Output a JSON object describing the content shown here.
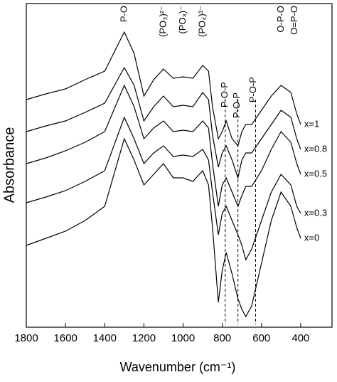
{
  "chart_data": {
    "type": "line",
    "xlabel": "Wavenumber (cm⁻¹)",
    "ylabel": "Absorbance",
    "xlim": [
      1800,
      240
    ],
    "xticks": [
      1800,
      1600,
      1400,
      1200,
      1000,
      800,
      600,
      400
    ],
    "ylim": [
      0,
      91
    ],
    "color": "#000000",
    "x": [
      1800,
      1700,
      1600,
      1500,
      1400,
      1300,
      1250,
      1200,
      1150,
      1100,
      1050,
      1000,
      950,
      900,
      870,
      850,
      820,
      800,
      780,
      750,
      720,
      700,
      680,
      650,
      600,
      550,
      500,
      450,
      420,
      400
    ],
    "series": [
      {
        "name": "x=1",
        "values": [
          64,
          65.6,
          67,
          69.6,
          72,
          83,
          77,
          65,
          69.6,
          72.6,
          70,
          70.4,
          70,
          73.6,
          72,
          62,
          53,
          55,
          58,
          53,
          51,
          55,
          57,
          57,
          61,
          65,
          68,
          66,
          60,
          57
        ]
      },
      {
        "name": "x=0.8",
        "values": [
          55,
          56.6,
          58,
          60.4,
          63,
          73,
          68,
          58,
          62,
          65,
          62,
          62.4,
          62,
          66,
          64,
          54,
          45,
          49,
          51,
          47,
          42,
          47,
          49,
          49,
          53,
          57,
          61,
          59,
          53,
          50
        ]
      },
      {
        "name": "x=0.5",
        "values": [
          46,
          47.6,
          49.6,
          52,
          55,
          68,
          62,
          53,
          56,
          58,
          55,
          55.4,
          55,
          58,
          56,
          46,
          34,
          40,
          42,
          38,
          34,
          37,
          39.6,
          39.6,
          44,
          50,
          55,
          52,
          46,
          43
        ]
      },
      {
        "name": "x=0.3",
        "values": [
          35,
          36.6,
          38.4,
          41,
          44,
          59,
          53,
          46,
          49,
          51,
          48,
          48.4,
          48,
          50,
          47,
          38,
          26,
          32,
          34,
          30,
          26,
          23,
          19,
          22,
          30,
          38,
          43,
          40,
          34,
          32
        ]
      },
      {
        "name": "x=0",
        "values": [
          23,
          25,
          27,
          30,
          34,
          53,
          47,
          40,
          43,
          46,
          42,
          42,
          41,
          44,
          40,
          28,
          7,
          16,
          21,
          15,
          8,
          5,
          3,
          6,
          18,
          30,
          38,
          34,
          28,
          25
        ]
      }
    ],
    "annotations": [
      {
        "text": "P-O",
        "x": 1300
      },
      {
        "text": "(PO₃)²⁻",
        "x": 1100
      },
      {
        "text": "(PO₃)⁻",
        "x": 1000
      },
      {
        "text": "(PO₄)³⁻",
        "x": 900
      },
      {
        "text": "P-O-P",
        "x": 785
      },
      {
        "text": "P-O-P",
        "x": 725
      },
      {
        "text": "P-O-P",
        "x": 640
      },
      {
        "text": "O-P-O",
        "x": 500
      },
      {
        "text": "O=P-O",
        "x": 430
      }
    ],
    "dashed_lines": [
      785,
      720,
      630
    ]
  }
}
